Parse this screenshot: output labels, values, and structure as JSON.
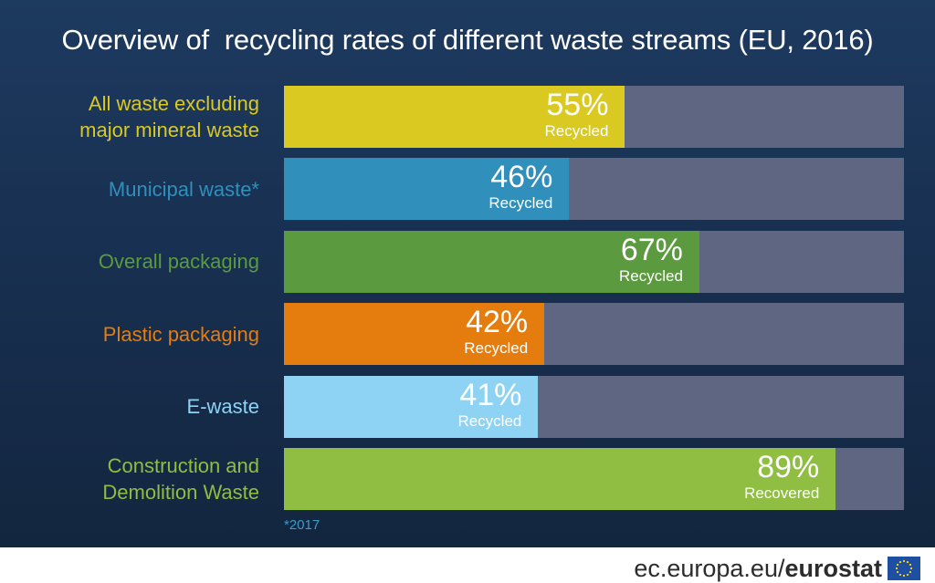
{
  "title": "Overview of  recycling rates of different waste streams (EU, 2016)",
  "footnote": "*2017",
  "footer": {
    "site": "ec.europa.eu/",
    "brand": "eurostat",
    "logo_icon": "eu-flag-icon"
  },
  "colors": {
    "background": "#1a3557",
    "track": "#5e6682",
    "footnote": "#3e9bc8"
  },
  "chart_data": {
    "type": "bar",
    "orientation": "horizontal",
    "title": "Overview of  recycling rates of different waste streams (EU, 2016)",
    "xlim": [
      0,
      100
    ],
    "categories": [
      "All waste excluding major mineral waste",
      "Municipal waste*",
      "Overall packaging",
      "Plastic packaging",
      "E-waste",
      "Construction and Demolition Waste"
    ],
    "bars": [
      {
        "label": "All waste excluding\nmajor mineral waste",
        "value": 55,
        "value_label": "55%",
        "sublabel": "Recycled",
        "color": "#d9c921"
      },
      {
        "label": "Municipal waste*",
        "value": 46,
        "value_label": "46%",
        "sublabel": "Recycled",
        "color": "#308fbb"
      },
      {
        "label": "Overall packaging",
        "value": 67,
        "value_label": "67%",
        "sublabel": "Recycled",
        "color": "#5b9a3f"
      },
      {
        "label": "Plastic packaging",
        "value": 42,
        "value_label": "42%",
        "sublabel": "Recycled",
        "color": "#e57c0e"
      },
      {
        "label": "E-waste",
        "value": 41,
        "value_label": "41%",
        "sublabel": "Recycled",
        "color": "#8fd3f4"
      },
      {
        "label": "Construction and\nDemolition Waste",
        "value": 89,
        "value_label": "89%",
        "sublabel": "Recovered",
        "color": "#8fbe43"
      }
    ]
  }
}
